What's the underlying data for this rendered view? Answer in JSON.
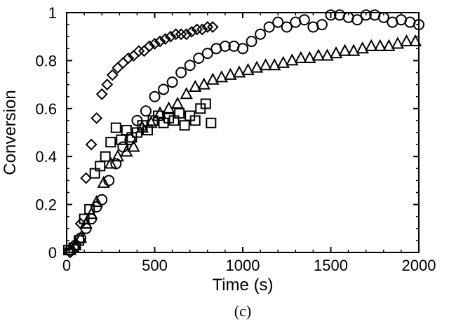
{
  "chart_data": {
    "type": "scatter",
    "xlabel": "Time (s)",
    "ylabel": "Conversion",
    "panel_label": "(c)",
    "xlim": [
      0,
      2000
    ],
    "ylim": [
      0,
      1
    ],
    "x_ticks": [
      0,
      500,
      1000,
      1500,
      2000
    ],
    "x_tick_labels": [
      "0",
      "500",
      "1000",
      "1500",
      "2000"
    ],
    "y_ticks": [
      0,
      0.2,
      0.4,
      0.6,
      0.8,
      1
    ],
    "y_tick_labels": [
      "0",
      "0.2",
      "0.4",
      "0.6",
      "0.8",
      "1"
    ],
    "grid": false,
    "series": [
      {
        "marker": "diamond",
        "x": [
          20,
          50,
          80,
          110,
          140,
          170,
          200,
          230,
          260,
          290,
          320,
          350,
          380,
          410,
          440,
          470,
          500,
          530,
          560,
          590,
          620,
          650,
          680,
          710,
          740,
          770,
          800,
          830
        ],
        "y": [
          0.0,
          0.02,
          0.12,
          0.31,
          0.45,
          0.56,
          0.66,
          0.7,
          0.74,
          0.77,
          0.79,
          0.81,
          0.82,
          0.84,
          0.84,
          0.86,
          0.87,
          0.88,
          0.89,
          0.9,
          0.91,
          0.91,
          0.91,
          0.92,
          0.93,
          0.93,
          0.94,
          0.94
        ]
      },
      {
        "marker": "circle",
        "x": [
          20,
          50,
          80,
          110,
          140,
          170,
          200,
          240,
          280,
          320,
          360,
          400,
          450,
          500,
          550,
          600,
          650,
          700,
          750,
          800,
          850,
          900,
          950,
          1000,
          1050,
          1100,
          1150,
          1200,
          1250,
          1300,
          1350,
          1400,
          1450,
          1500,
          1550,
          1600,
          1650,
          1700,
          1750,
          1800,
          1850,
          1900,
          1950,
          2000
        ],
        "y": [
          0.01,
          0.03,
          0.06,
          0.1,
          0.14,
          0.19,
          0.22,
          0.3,
          0.37,
          0.44,
          0.47,
          0.55,
          0.59,
          0.65,
          0.68,
          0.71,
          0.75,
          0.78,
          0.81,
          0.83,
          0.85,
          0.86,
          0.86,
          0.85,
          0.88,
          0.91,
          0.94,
          0.96,
          0.94,
          0.96,
          0.97,
          0.94,
          0.95,
          0.99,
          0.99,
          0.98,
          0.97,
          0.99,
          0.99,
          0.98,
          0.96,
          0.97,
          0.96,
          0.95
        ]
      },
      {
        "marker": "square",
        "x": [
          10,
          40,
          70,
          100,
          130,
          160,
          190,
          220,
          250,
          280,
          310,
          340,
          370,
          400,
          430,
          460,
          490,
          520,
          550,
          580,
          610,
          640,
          670,
          700,
          730,
          760,
          790,
          820
        ],
        "y": [
          0.01,
          0.02,
          0.05,
          0.14,
          0.18,
          0.33,
          0.36,
          0.4,
          0.46,
          0.52,
          0.47,
          0.51,
          0.48,
          0.5,
          0.53,
          0.51,
          0.55,
          0.57,
          0.54,
          0.56,
          0.55,
          0.58,
          0.53,
          0.57,
          0.55,
          0.6,
          0.62,
          0.54
        ]
      },
      {
        "marker": "triangle",
        "x": [
          20,
          50,
          80,
          110,
          140,
          170,
          210,
          250,
          290,
          340,
          380,
          430,
          480,
          530,
          580,
          630,
          680,
          730,
          780,
          830,
          880,
          930,
          980,
          1030,
          1080,
          1130,
          1180,
          1230,
          1280,
          1330,
          1380,
          1430,
          1480,
          1530,
          1580,
          1630,
          1680,
          1730,
          1780,
          1830,
          1880,
          1930,
          1980
        ],
        "y": [
          0.01,
          0.03,
          0.06,
          0.12,
          0.16,
          0.21,
          0.29,
          0.37,
          0.4,
          0.42,
          0.44,
          0.52,
          0.54,
          0.58,
          0.6,
          0.62,
          0.66,
          0.69,
          0.7,
          0.72,
          0.73,
          0.74,
          0.75,
          0.76,
          0.77,
          0.78,
          0.78,
          0.79,
          0.8,
          0.81,
          0.81,
          0.82,
          0.82,
          0.83,
          0.84,
          0.84,
          0.85,
          0.86,
          0.86,
          0.86,
          0.87,
          0.88,
          0.88
        ]
      }
    ]
  }
}
